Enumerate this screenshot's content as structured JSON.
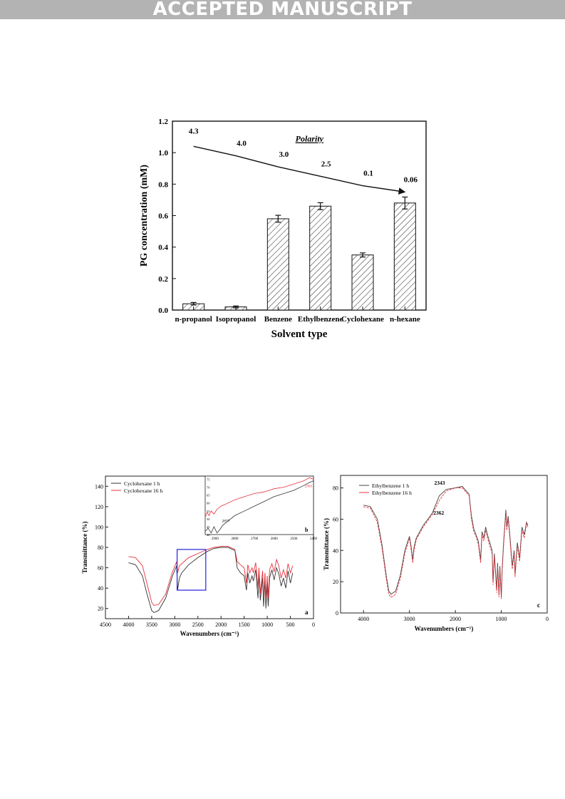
{
  "banner": {
    "text": "ACCEPTED MANUSCRIPT",
    "background": "#b3b3b3",
    "color": "#ffffff"
  },
  "chart_data": [
    {
      "type": "bar",
      "categories": [
        "n-propanol",
        "Isopropanol",
        "Benzene",
        "Ethylbenzene",
        "Cyclohexane",
        "n-hexane"
      ],
      "values": [
        0.04,
        0.02,
        0.58,
        0.66,
        0.35,
        0.68
      ],
      "errors": [
        0.008,
        0.006,
        0.022,
        0.022,
        0.013,
        0.038
      ],
      "xlabel": "Solvent type",
      "ylabel": "PG concentration (mM)",
      "ylim": [
        0,
        1.2
      ],
      "yticks": [
        "0.0",
        "0.2",
        "0.4",
        "0.6",
        "0.8",
        "1.0",
        "1.2"
      ],
      "bar_pattern": "diagonal-hatch",
      "annotation_title": "Polarity",
      "polarity_values": [
        "4.3",
        "4.0",
        "3.0",
        "2.5",
        "0.1",
        "0.06"
      ],
      "polarity_curve": [
        [
          0,
          1.04
        ],
        [
          1,
          0.98
        ],
        [
          2,
          0.91
        ],
        [
          3,
          0.85
        ],
        [
          4,
          0.79
        ],
        [
          5,
          0.75
        ]
      ]
    },
    {
      "type": "line",
      "panel_label": "a",
      "xlabel": "Wavenumbers (cm⁻¹)",
      "ylabel": "Transmittance (%)",
      "xlim": [
        4500,
        0
      ],
      "ylim": [
        10,
        150
      ],
      "xticks": [
        "4500",
        "4000",
        "3500",
        "3000",
        "2500",
        "2000",
        "1500",
        "1000",
        "500",
        "0"
      ],
      "yticks": [
        "20",
        "40",
        "60",
        "80",
        "100",
        "120",
        "140"
      ],
      "colors": {
        "cyclohexane_1h": "#333333",
        "cyclohexane_16h": "#e8303a",
        "zoom_box": "#2222dd"
      },
      "series": [
        {
          "name": "Cyclohexane 1 h",
          "x": [
            4000,
            3850,
            3700,
            3600,
            3500,
            3450,
            3350,
            3200,
            3050,
            2960,
            2940,
            2900,
            2850,
            2700,
            2500,
            2300,
            2150,
            2000,
            1850,
            1700,
            1650,
            1580,
            1500,
            1450,
            1420,
            1380,
            1330,
            1300,
            1250,
            1200,
            1180,
            1150,
            1100,
            1080,
            1050,
            1030,
            1000,
            980,
            950,
            900,
            850,
            800,
            750,
            700,
            650,
            600,
            550,
            500,
            450
          ],
          "y": [
            65,
            63,
            52,
            34,
            18,
            16,
            18,
            30,
            52,
            62,
            38,
            50,
            55,
            63,
            70,
            76,
            79,
            80,
            80,
            77,
            60,
            55,
            52,
            38,
            55,
            45,
            52,
            47,
            58,
            30,
            55,
            28,
            50,
            22,
            48,
            20,
            45,
            22,
            50,
            58,
            48,
            60,
            54,
            42,
            50,
            40,
            57,
            45,
            55
          ]
        },
        {
          "name": "Cyclohexane 16 h",
          "x": [
            4000,
            3850,
            3700,
            3600,
            3500,
            3450,
            3350,
            3200,
            3050,
            2960,
            2940,
            2900,
            2850,
            2700,
            2500,
            2300,
            2150,
            2000,
            1850,
            1700,
            1650,
            1580,
            1500,
            1450,
            1420,
            1380,
            1330,
            1300,
            1250,
            1200,
            1180,
            1150,
            1100,
            1080,
            1050,
            1030,
            1000,
            980,
            950,
            900,
            850,
            800,
            750,
            700,
            650,
            600,
            550,
            500,
            450
          ],
          "y": [
            71,
            70,
            62,
            44,
            26,
            23,
            24,
            34,
            56,
            66,
            55,
            62,
            64,
            70,
            74,
            78,
            80,
            81,
            81,
            78,
            66,
            63,
            60,
            45,
            63,
            55,
            60,
            55,
            65,
            40,
            60,
            35,
            57,
            30,
            55,
            30,
            52,
            30,
            58,
            64,
            56,
            68,
            62,
            50,
            58,
            50,
            64,
            55,
            62
          ]
        }
      ],
      "inset": {
        "panel_label": "b",
        "xlim": [
          2950,
          2400
        ],
        "ylim": [
          40,
          77
        ],
        "xticks": [
          "2900",
          "2800",
          "2700",
          "2600",
          "2500",
          "2400"
        ],
        "yticks": [
          "40",
          "45",
          "50",
          "55",
          "60",
          "65",
          "70",
          "75"
        ],
        "annotations": [
          "2877",
          "2361"
        ],
        "series": [
          {
            "name": "Cyclohexane 1 h",
            "x": [
              2950,
              2935,
              2920,
              2905,
              2890,
              2877,
              2860,
              2830,
              2800,
              2750,
              2700,
              2650,
              2600,
              2550,
              2500,
              2450,
              2420,
              2400
            ],
            "y": [
              42,
              44,
              41,
              45,
              41,
              43,
              46,
              49,
              52,
              55,
              58,
              61,
              64,
              66,
              68,
              71,
              73,
              74
            ]
          },
          {
            "name": "Cyclohexane 16 h",
            "x": [
              2950,
              2940,
              2930,
              2920,
              2905,
              2890,
              2870,
              2850,
              2800,
              2750,
              2700,
              2650,
              2600,
              2550,
              2500,
              2450,
              2420,
              2400
            ],
            "y": [
              51,
              54,
              52,
              55,
              53,
              56,
              58,
              59,
              62,
              64,
              66,
              67,
              69,
              70,
              72,
              74,
              76,
              75
            ]
          }
        ]
      }
    },
    {
      "type": "line",
      "panel_label": "c",
      "xlabel": "Wavenumbers (cm⁻¹)",
      "ylabel": "Transmittance (%)",
      "xlim": [
        4500,
        0
      ],
      "ylim": [
        0,
        88
      ],
      "xticks": [
        "4000",
        "3000",
        "2000",
        "1000",
        "0"
      ],
      "yticks": [
        "0",
        "20",
        "40",
        "60",
        "80"
      ],
      "annotations": [
        "2343",
        "2362"
      ],
      "colors": {
        "ethylbenzene_1h": "#444444",
        "ethylbenzene_16h": "#e8303a"
      },
      "series": [
        {
          "name": "Ethylbenzene 1 h",
          "x": [
            4000,
            3850,
            3700,
            3600,
            3500,
            3450,
            3400,
            3300,
            3200,
            3100,
            3000,
            2960,
            2930,
            2900,
            2850,
            2700,
            2500,
            2350,
            2200,
            2000,
            1850,
            1700,
            1650,
            1600,
            1550,
            1500,
            1450,
            1420,
            1380,
            1340,
            1300,
            1250,
            1200,
            1180,
            1150,
            1100,
            1080,
            1050,
            1030,
            1000,
            980,
            950,
            900,
            880,
            850,
            820,
            800,
            760,
            720,
            700,
            650,
            600,
            550,
            500,
            450,
            420
          ],
          "y": [
            69,
            68,
            60,
            44,
            23,
            14,
            12,
            14,
            24,
            40,
            49,
            42,
            34,
            42,
            48,
            56,
            64,
            75,
            79,
            80,
            81,
            76,
            62,
            54,
            50,
            46,
            34,
            52,
            48,
            55,
            50,
            45,
            40,
            20,
            38,
            15,
            32,
            12,
            30,
            10,
            28,
            45,
            66,
            55,
            62,
            52,
            45,
            30,
            40,
            25,
            45,
            35,
            55,
            50,
            58,
            56
          ]
        },
        {
          "name": "Ethylbenzene 16 h",
          "x": [
            4000,
            3850,
            3700,
            3600,
            3500,
            3450,
            3400,
            3300,
            3200,
            3100,
            3000,
            2960,
            2930,
            2900,
            2850,
            2700,
            2500,
            2350,
            2200,
            2000,
            1850,
            1700,
            1650,
            1600,
            1550,
            1500,
            1450,
            1420,
            1380,
            1340,
            1300,
            1250,
            1200,
            1180,
            1150,
            1100,
            1080,
            1050,
            1030,
            1000,
            980,
            950,
            900,
            880,
            850,
            820,
            800,
            760,
            720,
            700,
            650,
            600,
            550,
            500,
            450,
            420
          ],
          "y": [
            68,
            67,
            58,
            42,
            21,
            12,
            10,
            12,
            22,
            38,
            48,
            40,
            32,
            40,
            47,
            55,
            63,
            72,
            78,
            80,
            80,
            75,
            60,
            52,
            49,
            44,
            32,
            50,
            46,
            53,
            48,
            43,
            38,
            18,
            36,
            13,
            30,
            10,
            28,
            9,
            26,
            43,
            64,
            53,
            60,
            50,
            43,
            28,
            38,
            23,
            43,
            33,
            53,
            48,
            57,
            55
          ]
        }
      ]
    }
  ]
}
